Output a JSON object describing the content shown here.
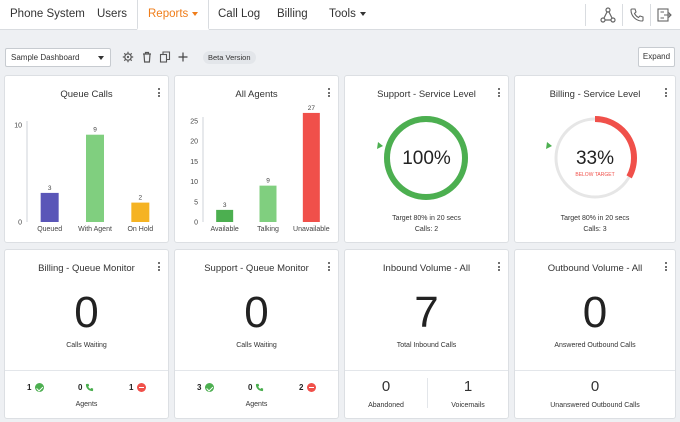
{
  "nav": {
    "items": [
      {
        "label": "Phone System"
      },
      {
        "label": "Users"
      },
      {
        "label": "Reports"
      },
      {
        "label": "Call Log"
      },
      {
        "label": "Billing"
      },
      {
        "label": "Tools"
      }
    ],
    "icons": [
      "network-icon",
      "phone-icon",
      "export-icon"
    ]
  },
  "toolbar": {
    "dashboard_select": "Sample Dashboard",
    "beta_label": "Beta Version",
    "expand_label": "Expand",
    "icons": [
      "gear-icon",
      "trash-icon",
      "copy-icon",
      "plus-icon"
    ]
  },
  "colors": {
    "accent": "#ef7d1a",
    "green": "#4caf50",
    "red": "#f0504a",
    "bar_purple": "#5a56b8",
    "bar_green": "#80cf7f",
    "bar_orange": "#f5b323",
    "bar_red": "#f0504a"
  },
  "cards": {
    "queue_calls": {
      "title": "Queue Calls"
    },
    "all_agents": {
      "title": "All Agents"
    },
    "support_sl": {
      "title": "Support - Service Level",
      "value": "100%",
      "target": "Target 80% in 20 secs",
      "calls": "Calls: 2",
      "level": 1.0
    },
    "billing_sl": {
      "title": "Billing - Service Level",
      "value": "33%",
      "status": "BELOW TARGET",
      "target": "Target 80% in 20 secs",
      "calls": "Calls: 3",
      "level": 0.33
    },
    "billing_qm": {
      "title": "Billing - Queue Monitor",
      "value": "0",
      "label": "Calls Waiting",
      "agents_label": "Agents",
      "available": "1",
      "talking": "0",
      "unavailable": "1"
    },
    "support_qm": {
      "title": "Support - Queue Monitor",
      "value": "0",
      "label": "Calls Waiting",
      "agents_label": "Agents",
      "available": "3",
      "talking": "0",
      "unavailable": "2"
    },
    "inbound": {
      "title": "Inbound Volume - All",
      "value": "7",
      "label": "Total Inbound Calls",
      "abandoned": "0",
      "abandoned_label": "Abandoned",
      "voicemails": "1",
      "voicemails_label": "Voicemails"
    },
    "outbound": {
      "title": "Outbound Volume - All",
      "value": "0",
      "label": "Answered Outbound Calls",
      "unanswered": "0",
      "unanswered_label": "Unanswered Outbound Calls"
    }
  },
  "chart_data": [
    {
      "type": "bar",
      "title": "Queue Calls",
      "categories": [
        "Queued",
        "With Agent",
        "On Hold"
      ],
      "values": [
        3,
        9,
        2
      ],
      "ylim": [
        0,
        10
      ],
      "yticks": [
        0,
        10
      ],
      "colors": [
        "#5a56b8",
        "#80cf7f",
        "#f5b323"
      ]
    },
    {
      "type": "bar",
      "title": "All Agents",
      "categories": [
        "Available",
        "Talking",
        "Unavailable"
      ],
      "values": [
        3,
        9,
        27
      ],
      "ylim": [
        0,
        25
      ],
      "yticks": [
        0,
        5,
        10,
        15,
        20,
        25
      ],
      "colors": [
        "#4caf50",
        "#80cf7f",
        "#f0504a"
      ]
    }
  ]
}
